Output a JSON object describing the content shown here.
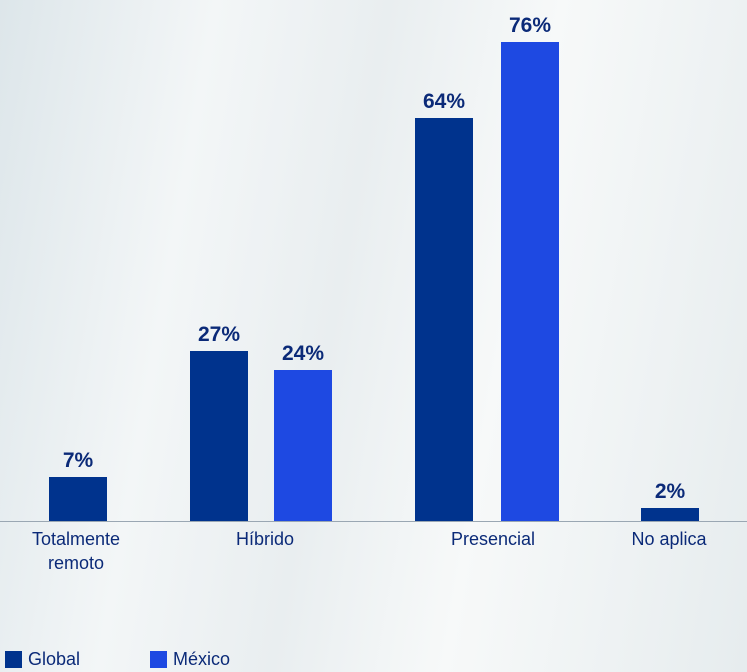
{
  "chart_data": {
    "type": "bar",
    "categories": [
      "Totalmente remoto",
      "Híbrido",
      "Presencial",
      "No aplica"
    ],
    "series": [
      {
        "name": "Global",
        "color": "#00338d",
        "values": [
          7,
          27,
          64,
          2
        ],
        "value_labels": [
          "7%",
          "27%",
          "64%",
          "2%"
        ]
      },
      {
        "name": "México",
        "color": "#1e49e2",
        "values": [
          null,
          24,
          76,
          null
        ],
        "value_labels": [
          null,
          "24%",
          "76%",
          null
        ]
      }
    ]
  }
}
